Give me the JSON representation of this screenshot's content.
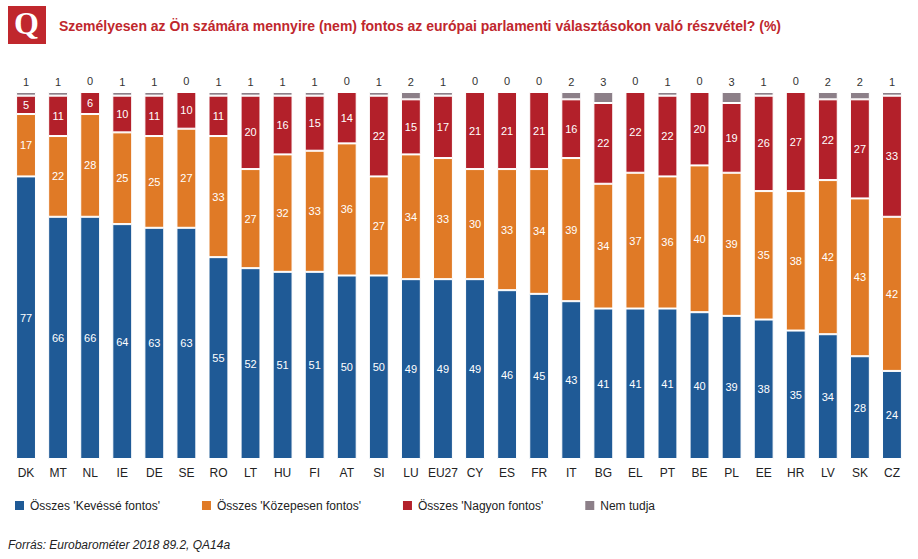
{
  "chart_data": {
    "type": "bar",
    "badge": "Q",
    "title": "Személyesen az Ön számára mennyire (nem) fontos az európai parlamenti választásokon való részvétel? (%)",
    "source": "Forrás: Eurobarométer 2018 89.2, QA14a",
    "categories": [
      "DK",
      "MT",
      "NL",
      "IE",
      "DE",
      "SE",
      "RO",
      "LT",
      "HU",
      "FI",
      "AT",
      "SI",
      "LU",
      "EU27",
      "CY",
      "ES",
      "FR",
      "IT",
      "BG",
      "EL",
      "PT",
      "BE",
      "PL",
      "EE",
      "HR",
      "LV",
      "SK",
      "CZ"
    ],
    "series": [
      {
        "name": "Összes 'Kevéssé fontos'",
        "color": "#1f5a96",
        "values": [
          77,
          66,
          66,
          64,
          63,
          63,
          55,
          52,
          51,
          51,
          50,
          50,
          49,
          49,
          49,
          46,
          45,
          43,
          41,
          41,
          41,
          40,
          39,
          38,
          35,
          34,
          28,
          24
        ]
      },
      {
        "name": "Összes 'Közepesen fontos'",
        "color": "#e07a26",
        "values": [
          17,
          22,
          28,
          25,
          25,
          27,
          33,
          27,
          32,
          33,
          36,
          27,
          34,
          33,
          30,
          33,
          34,
          39,
          34,
          37,
          36,
          40,
          39,
          35,
          38,
          42,
          43,
          42
        ]
      },
      {
        "name": "Összes 'Nagyon fontos'",
        "color": "#b3202a",
        "values": [
          5,
          11,
          6,
          10,
          11,
          10,
          11,
          20,
          16,
          15,
          14,
          22,
          15,
          17,
          21,
          21,
          21,
          16,
          22,
          22,
          22,
          20,
          19,
          26,
          27,
          22,
          27,
          33
        ]
      },
      {
        "name": "Nem tudja",
        "color": "#8c7f88",
        "values": [
          1,
          1,
          0,
          1,
          1,
          0,
          1,
          1,
          1,
          1,
          0,
          1,
          2,
          1,
          0,
          0,
          0,
          2,
          3,
          0,
          1,
          0,
          3,
          1,
          0,
          2,
          2,
          1
        ]
      }
    ],
    "stacked": true,
    "data_labels": true,
    "tick_labels": "x",
    "grid": false,
    "legend": "bottom",
    "ylim": [
      0,
      100
    ]
  }
}
